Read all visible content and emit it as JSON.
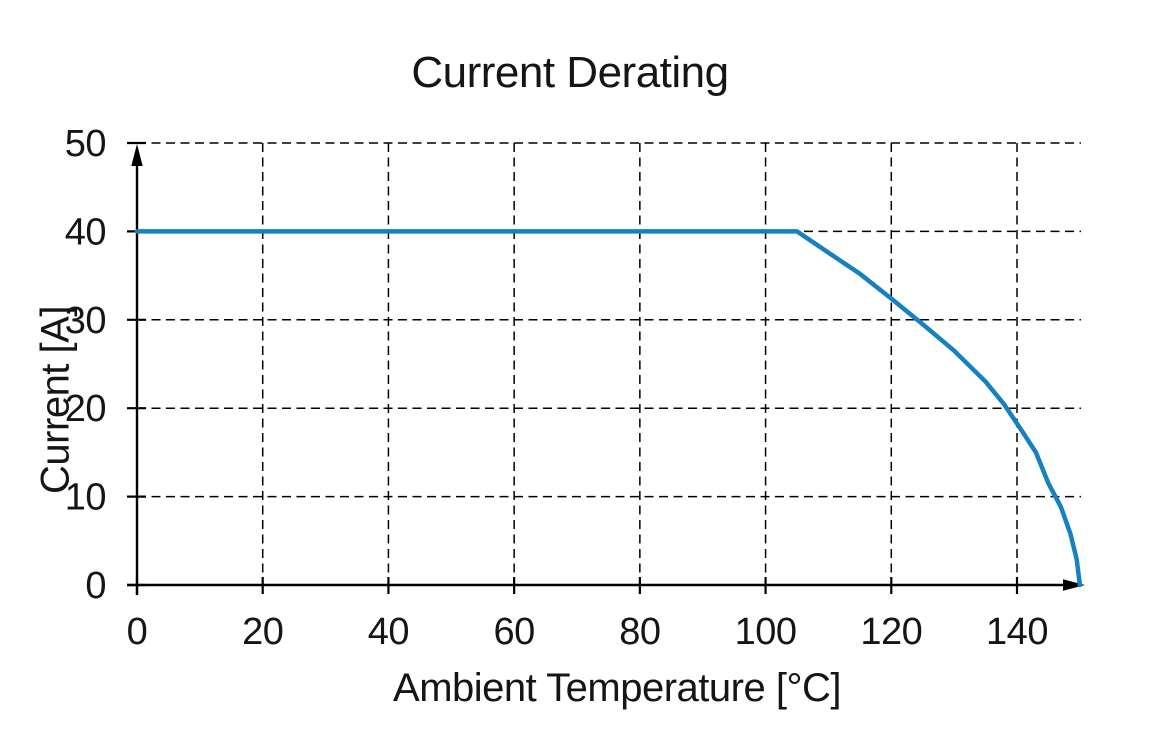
{
  "colors": {
    "background": "#ffffff",
    "line": "#1581c1",
    "axis": "#000000",
    "grid": "#000000",
    "text": "#151515"
  },
  "chart_data": {
    "type": "line",
    "title": "Current Derating",
    "xlabel": "Ambient Temperature [°C]",
    "ylabel": "Current [A]",
    "xlim": [
      0,
      150
    ],
    "ylim": [
      0,
      50
    ],
    "x_ticks": [
      0,
      20,
      40,
      60,
      80,
      100,
      120,
      140
    ],
    "y_ticks": [
      0,
      10,
      20,
      30,
      40,
      50
    ],
    "grid": "dashed",
    "legend": "none",
    "line_color": "#1581c1",
    "series": [
      {
        "name": "Current",
        "points": [
          [
            0,
            40
          ],
          [
            105,
            40
          ],
          [
            110,
            37.6
          ],
          [
            115,
            35.2
          ],
          [
            120,
            32.4
          ],
          [
            125,
            29.5
          ],
          [
            130,
            26.5
          ],
          [
            135,
            23
          ],
          [
            138,
            20.4
          ],
          [
            141,
            17.2
          ],
          [
            143,
            15
          ],
          [
            145,
            11.5
          ],
          [
            147,
            8.8
          ],
          [
            148.5,
            5.8
          ],
          [
            149.5,
            2.9
          ],
          [
            150,
            0
          ]
        ]
      }
    ]
  }
}
